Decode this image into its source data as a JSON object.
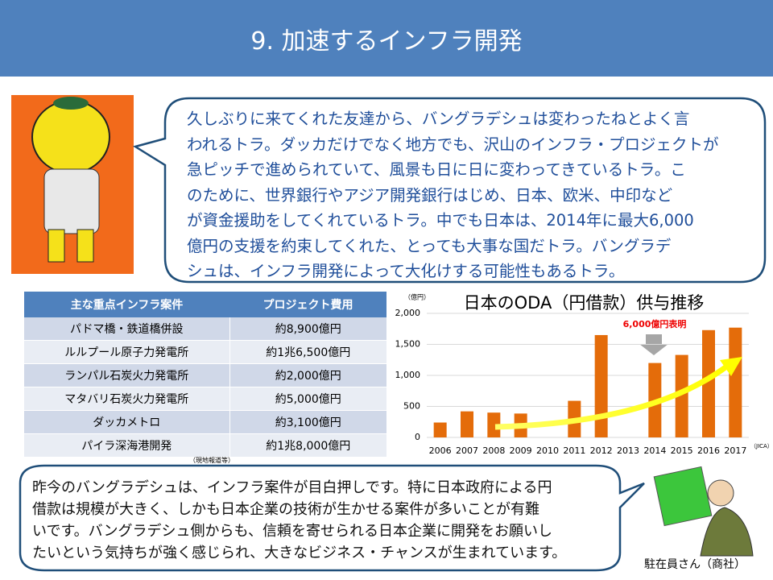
{
  "title": "9. 加速するインフラ開発",
  "speech": {
    "lines": [
      "久しぶりに来てくれた友達から、バングラデシュは変わったねとよく言",
      "われるトラ。ダッカだけでなく地方でも、沢山のインフラ・プロジェクトが",
      "急ピッチで進められていて、風景も日に日に変わってきているトラ。こ",
      "のために、世界銀行やアジア開発銀行はじめ、日本、欧米、中印など",
      "が資金援助をしてくれているトラ。中でも日本は、2014年に最大6,000",
      "億円の支援を約束してくれた、とっても大事な国だトラ。バングラデ",
      "シュは、インフラ開発によって大化けする可能性もあるトラ。"
    ]
  },
  "table": {
    "header": [
      "主な重点インフラ案件",
      "プロジェクト費用"
    ],
    "rows": [
      [
        "パドマ橋・鉄道橋併設",
        "約8,900億円"
      ],
      [
        "ルルプール原子力発電所",
        "約1兆6,500億円"
      ],
      [
        "ランパル石炭火力発電所",
        "約2,000億円"
      ],
      [
        "マタバリ石炭火力発電所",
        "約5,000億円"
      ],
      [
        "ダッカメトロ",
        "約3,100億円"
      ],
      [
        "パイラ深海港開発",
        "約1兆8,000億円"
      ]
    ],
    "source": "（現地報道等）"
  },
  "chart_data": {
    "type": "bar",
    "title": "日本のODA（円借款）供与推移",
    "unit_label": "（億円）",
    "source": "（JICA）",
    "annotation": "6,000億円表明",
    "categories": [
      "2006",
      "2007",
      "2008",
      "2009",
      "2010",
      "2011",
      "2012",
      "2013",
      "2014",
      "2015",
      "2016",
      "2017"
    ],
    "values": [
      240,
      420,
      400,
      385,
      0,
      590,
      1650,
      0,
      1200,
      1330,
      1730,
      1770
    ],
    "color": "#e46c0a",
    "ylim": [
      0,
      2000
    ],
    "yticks": [
      0,
      500,
      {
        "value": 1000,
        "label": "1,000"
      },
      {
        "value": 1500,
        "label": "1,500"
      },
      {
        "value": 2000,
        "label": "2,000"
      }
    ],
    "grid": true
  },
  "talk": {
    "lines": [
      "昨今のバングラデシュは、インフラ案件が目白押しです。特に日本政府による円",
      "借款は規模が大きく、しかも日本企業の技術が生かせる案件が多いことが有難",
      "いです。バングラデシュ側からも、信頼を寄せられる日本企業に開発をお願いし",
      "たいという気持ちが強く感じられ、大きなビジネス・チャンスが生まれています。"
    ],
    "caption": "駐在員さん（商社）"
  }
}
